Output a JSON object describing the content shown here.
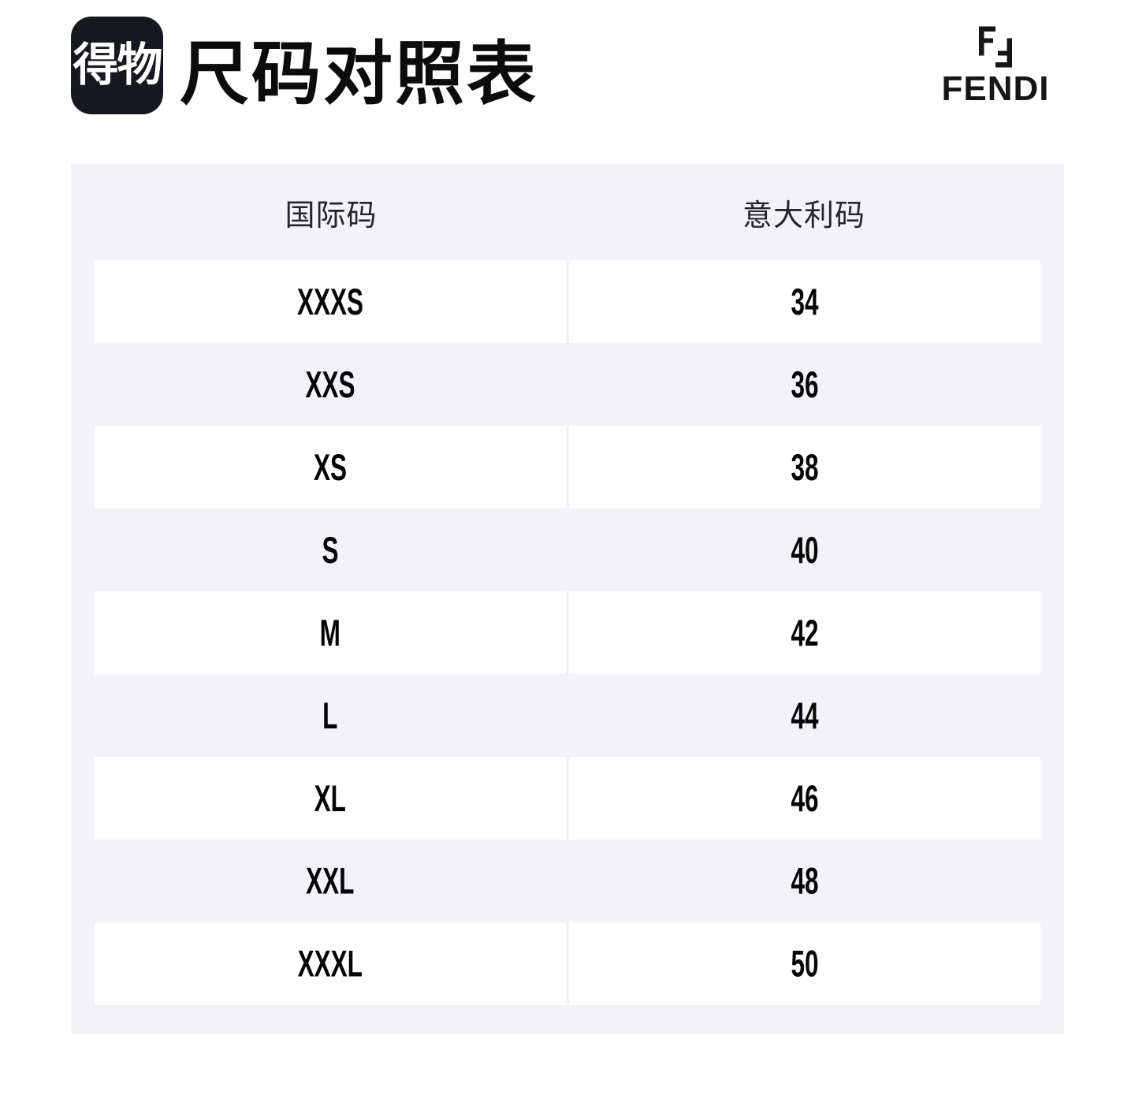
{
  "header": {
    "app_logo_text": "得物",
    "page_title": "尺码对照表",
    "brand_name": "FENDI"
  },
  "table": {
    "columns": [
      {
        "label": "国际码"
      },
      {
        "label": "意大利码"
      }
    ],
    "rows": [
      {
        "intl": "XXXS",
        "it": "34"
      },
      {
        "intl": "XXS",
        "it": "36"
      },
      {
        "intl": "XS",
        "it": "38"
      },
      {
        "intl": "S",
        "it": "40"
      },
      {
        "intl": "M",
        "it": "42"
      },
      {
        "intl": "L",
        "it": "44"
      },
      {
        "intl": "XL",
        "it": "46"
      },
      {
        "intl": "XXL",
        "it": "48"
      },
      {
        "intl": "XXXL",
        "it": "50"
      }
    ]
  },
  "colors": {
    "page_bg": "#ffffff",
    "panel_bg": "#f3f3f7",
    "row_bg": "#ffffff",
    "logo_bg": "#17181d",
    "text": "#0c0c0e"
  }
}
